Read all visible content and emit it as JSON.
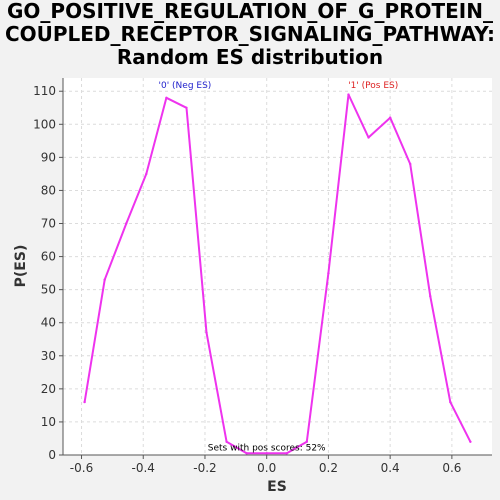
{
  "chart_data": {
    "type": "line",
    "title_lines": [
      "GO_POSITIVE_REGULATION_OF_G_PROTEIN_",
      "COUPLED_RECEPTOR_SIGNALING_PATHWAY:",
      "Random ES distribution"
    ],
    "xlabel": "ES",
    "ylabel": "P(ES)",
    "xlim": [
      -0.66,
      0.73
    ],
    "ylim": [
      0,
      114
    ],
    "xticks": [
      -0.6,
      -0.4,
      -0.2,
      0.0,
      0.2,
      0.4,
      0.6
    ],
    "xtick_labels": [
      "-0.6",
      "-0.4",
      "-0.2",
      "0.0",
      "0.2",
      "0.4",
      "0.6"
    ],
    "yticks": [
      0,
      10,
      20,
      30,
      40,
      50,
      60,
      70,
      80,
      90,
      100,
      110
    ],
    "ytick_labels": [
      "0",
      "10",
      "20",
      "30",
      "40",
      "50",
      "60",
      "70",
      "80",
      "90",
      "100",
      "110"
    ],
    "grid": true,
    "series": [
      {
        "color": "#ee33ee",
        "points": [
          [
            -0.59,
            16
          ],
          [
            -0.525,
            53
          ],
          [
            -0.455,
            70
          ],
          [
            -0.39,
            85
          ],
          [
            -0.325,
            108
          ],
          [
            -0.26,
            105
          ],
          [
            -0.195,
            37
          ],
          [
            -0.13,
            4
          ],
          [
            -0.065,
            0.5
          ],
          [
            0.0,
            0.5
          ],
          [
            0.065,
            0.5
          ],
          [
            0.13,
            4
          ],
          [
            0.2,
            55
          ],
          [
            0.265,
            109
          ],
          [
            0.33,
            96
          ],
          [
            0.4,
            102
          ],
          [
            0.465,
            88
          ],
          [
            0.53,
            48
          ],
          [
            0.595,
            16
          ],
          [
            0.66,
            4
          ]
        ]
      }
    ],
    "annotations": [
      {
        "text": "'0' (Neg ES)",
        "x": -0.265,
        "y": 110,
        "color": "#2222cc"
      },
      {
        "text": "'1' (Pos ES)",
        "x": 0.345,
        "y": 110,
        "color": "#dd2222"
      },
      {
        "text": "Sets with pos scores: 52%",
        "x": 0.0,
        "y": 0.5,
        "color": "#000000"
      }
    ]
  }
}
